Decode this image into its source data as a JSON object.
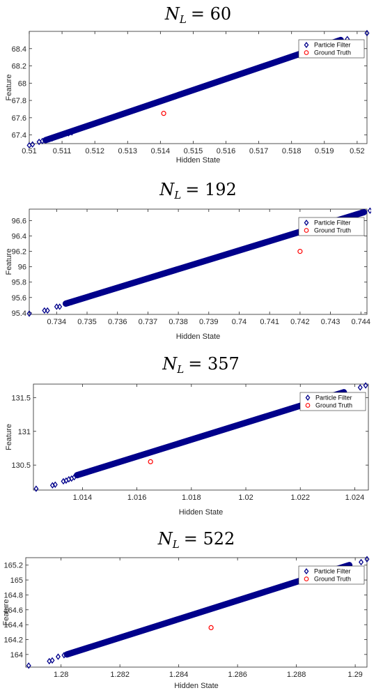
{
  "chart_data": [
    {
      "type": "scatter",
      "title_symbol": "N",
      "title_subscript": "L",
      "title_value": "= 60",
      "xlabel": "Hidden State",
      "ylabel": "Feature",
      "xlim": [
        0.51,
        0.5203
      ],
      "ylim": [
        67.3,
        68.6
      ],
      "xticks": [
        0.51,
        0.511,
        0.512,
        0.513,
        0.514,
        0.515,
        0.516,
        0.517,
        0.518,
        0.519,
        0.52
      ],
      "xtick_labels": [
        "0.51",
        "0.511",
        "0.512",
        "0.513",
        "0.514",
        "0.515",
        "0.516",
        "0.517",
        "0.518",
        "0.519",
        "0.52"
      ],
      "yticks": [
        67.4,
        67.6,
        67.8,
        68,
        68.2,
        68.4
      ],
      "ytick_labels": [
        "67.4",
        "67.6",
        "67.8",
        "68",
        "68.2",
        "68.4"
      ],
      "legend": [
        "Particle Filter",
        "Ground Truth"
      ],
      "legend_position": "top-right",
      "series": [
        {
          "name": "Particle Filter",
          "marker": "diamond",
          "color": "#00008b",
          "line_start": [
            0.5105,
            67.34
          ],
          "line_end": [
            0.5195,
            68.5
          ],
          "points": [
            [
              0.51,
              67.28
            ],
            [
              0.5101,
              67.29
            ],
            [
              0.5103,
              67.32
            ],
            [
              0.5104,
              67.33
            ],
            [
              0.5106,
              67.35
            ],
            [
              0.5107,
              67.36
            ],
            [
              0.5109,
              67.39
            ],
            [
              0.511,
              67.4
            ],
            [
              0.5112,
              67.42
            ],
            [
              0.5113,
              67.43
            ],
            [
              0.5197,
              68.51
            ],
            [
              0.5203,
              68.58
            ]
          ]
        },
        {
          "name": "Ground Truth",
          "marker": "circle",
          "color": "#ff0000",
          "points": [
            [
              0.5141,
              67.65
            ]
          ]
        }
      ]
    },
    {
      "type": "scatter",
      "title_symbol": "N",
      "title_subscript": "L",
      "title_value": "= 192",
      "xlabel": "Hidden State",
      "ylabel": "Feature",
      "xlim": [
        0.7331,
        0.7442
      ],
      "ylim": [
        95.38,
        96.75
      ],
      "xticks": [
        0.734,
        0.735,
        0.736,
        0.737,
        0.738,
        0.739,
        0.74,
        0.741,
        0.742,
        0.743,
        0.744
      ],
      "xtick_labels": [
        "0.734",
        "0.735",
        "0.736",
        "0.737",
        "0.738",
        "0.739",
        "0.74",
        "0.741",
        "0.742",
        "0.743",
        "0.744"
      ],
      "yticks": [
        95.4,
        95.6,
        95.8,
        96,
        96.2,
        96.4,
        96.6
      ],
      "ytick_labels": [
        "95.4",
        "95.6",
        "95.8",
        "96",
        "96.2",
        "96.4",
        "96.6"
      ],
      "legend": [
        "Particle Filter",
        "Ground Truth"
      ],
      "legend_position": "top-right",
      "series": [
        {
          "name": "Particle Filter",
          "marker": "diamond",
          "color": "#00008b",
          "line_start": [
            0.7343,
            95.52
          ],
          "line_end": [
            0.7441,
            96.71
          ],
          "points": [
            [
              0.7331,
              95.39
            ],
            [
              0.7336,
              95.43
            ],
            [
              0.7337,
              95.43
            ],
            [
              0.734,
              95.48
            ],
            [
              0.7341,
              95.48
            ],
            [
              0.7343,
              95.52
            ],
            [
              0.7344,
              95.53
            ],
            [
              0.7345,
              95.54
            ],
            [
              0.7443,
              96.73
            ],
            [
              0.7444,
              96.74
            ]
          ]
        },
        {
          "name": "Ground Truth",
          "marker": "circle",
          "color": "#ff0000",
          "points": [
            [
              0.742,
              96.2
            ]
          ]
        }
      ]
    },
    {
      "type": "scatter",
      "title_symbol": "N",
      "title_subscript": "L",
      "title_value": "= 357",
      "xlabel": "Hidden State",
      "ylabel": "Feature",
      "xlim": [
        1.0122,
        1.0245
      ],
      "ylim": [
        130.13,
        131.7
      ],
      "xticks": [
        1.014,
        1.016,
        1.018,
        1.02,
        1.022,
        1.024
      ],
      "xtick_labels": [
        "1.014",
        "1.016",
        "1.018",
        "1.02",
        "1.022",
        "1.024"
      ],
      "yticks": [
        130.5,
        131,
        131.5
      ],
      "ytick_labels": [
        "130.5",
        "131",
        "131.5"
      ],
      "legend": [
        "Particle Filter",
        "Ground Truth"
      ],
      "legend_position": "top-right",
      "series": [
        {
          "name": "Particle Filter",
          "marker": "diamond",
          "color": "#00008b",
          "line_start": [
            1.0138,
            130.35
          ],
          "line_end": [
            1.0236,
            131.58
          ],
          "points": [
            [
              1.0123,
              130.15
            ],
            [
              1.0129,
              130.2
            ],
            [
              1.013,
              130.21
            ],
            [
              1.0133,
              130.26
            ],
            [
              1.0134,
              130.27
            ],
            [
              1.0135,
              130.29
            ],
            [
              1.0136,
              130.3
            ],
            [
              1.0137,
              130.32
            ],
            [
              1.0242,
              131.65
            ],
            [
              1.0244,
              131.68
            ]
          ]
        },
        {
          "name": "Ground Truth",
          "marker": "circle",
          "color": "#ff0000",
          "points": [
            [
              1.0165,
              130.55
            ]
          ]
        }
      ]
    },
    {
      "type": "scatter",
      "title_symbol": "N",
      "title_subscript": "L",
      "title_value": "= 522",
      "xlabel": "Hidden State",
      "ylabel": "Feature",
      "xlim": [
        1.2788,
        1.2904
      ],
      "ylim": [
        163.83,
        165.3
      ],
      "xticks": [
        1.28,
        1.282,
        1.284,
        1.286,
        1.288,
        1.29
      ],
      "xtick_labels": [
        "1.28",
        "1.282",
        "1.284",
        "1.286",
        "1.288",
        "1.29"
      ],
      "yticks": [
        164,
        164.2,
        164.4,
        164.6,
        164.8,
        165,
        165.2
      ],
      "ytick_labels": [
        "164",
        "164.2",
        "164.4",
        "164.6",
        "164.8",
        "165",
        "165.2"
      ],
      "legend": [
        "Particle Filter",
        "Ground Truth"
      ],
      "legend_position": "top-right",
      "series": [
        {
          "name": "Particle Filter",
          "marker": "diamond",
          "color": "#00008b",
          "line_start": [
            1.2802,
            164.0
          ],
          "line_end": [
            1.2898,
            165.2
          ],
          "points": [
            [
              1.2789,
              163.85
            ],
            [
              1.2796,
              163.91
            ],
            [
              1.2797,
              163.92
            ],
            [
              1.2799,
              163.97
            ],
            [
              1.2801,
              163.99
            ],
            [
              1.2803,
              164.01
            ],
            [
              1.2902,
              165.24
            ],
            [
              1.2904,
              165.28
            ]
          ]
        },
        {
          "name": "Ground Truth",
          "marker": "circle",
          "color": "#ff0000",
          "points": [
            [
              1.2851,
              164.36
            ]
          ]
        }
      ]
    }
  ]
}
